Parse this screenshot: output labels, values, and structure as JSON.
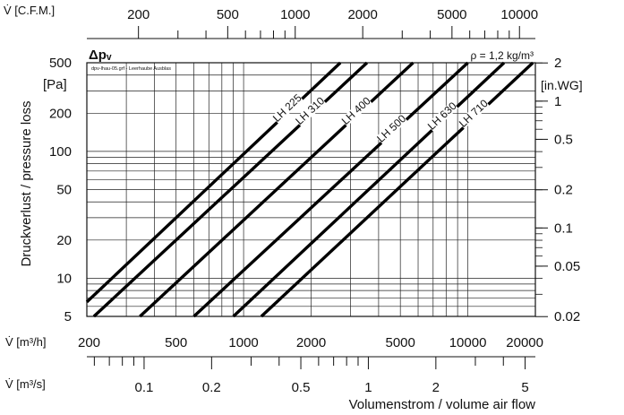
{
  "chart_data": {
    "type": "line",
    "title_top_left": "V̇ [C.F.M.]",
    "delta_p_label": "Δpᵥ",
    "density_label": "ρ = 1,2 kg/m³",
    "file_note": "dpv-lhau-05.grf - Leerhaube Ausblas",
    "ylabel": "Druckverlust / pressure loss",
    "yunit_left": "[Pa]",
    "yunit_right": "[in.WG]",
    "xlabel_m3h": "V̇ [m³/h]",
    "xlabel_m3s": "V̇ [m³/s]",
    "xlabel_bottom": "Volumenstrom / volume air flow",
    "xlim_m3h": [
      200,
      20000
    ],
    "ylim_pa": [
      5,
      500
    ],
    "x_scale": "log",
    "y_scale": "log",
    "grid": true,
    "cfm_ticks": [
      "200",
      "500",
      "1000",
      "2000",
      "5000",
      "10000"
    ],
    "m3h_ticks": [
      "200",
      "500",
      "1000",
      "2000",
      "5000",
      "10000",
      "20000"
    ],
    "m3s_ticks": [
      "0.1",
      "0.2",
      "0.5",
      "1",
      "2",
      "5"
    ],
    "pa_ticks": [
      "5",
      "10",
      "20",
      "50",
      "100",
      "200",
      "500"
    ],
    "inwg_ticks": [
      "0.02",
      "0.05",
      "0.1",
      "0.2",
      "0.5",
      "1",
      "2"
    ],
    "series": [
      {
        "name": "LH 225",
        "points": [
          [
            200,
            6.5
          ],
          [
            2700,
            500
          ]
        ]
      },
      {
        "name": "LH 310",
        "points": [
          [
            215,
            5
          ],
          [
            3550,
            500
          ]
        ]
      },
      {
        "name": "LH 400",
        "points": [
          [
            345,
            5
          ],
          [
            5700,
            500
          ]
        ]
      },
      {
        "name": "LH 500",
        "points": [
          [
            600,
            5
          ],
          [
            10000,
            500
          ]
        ]
      },
      {
        "name": "LH 630",
        "points": [
          [
            900,
            5
          ],
          [
            14500,
            500
          ]
        ]
      },
      {
        "name": "LH 710",
        "points": [
          [
            1200,
            5
          ],
          [
            19500,
            500
          ]
        ]
      }
    ]
  }
}
